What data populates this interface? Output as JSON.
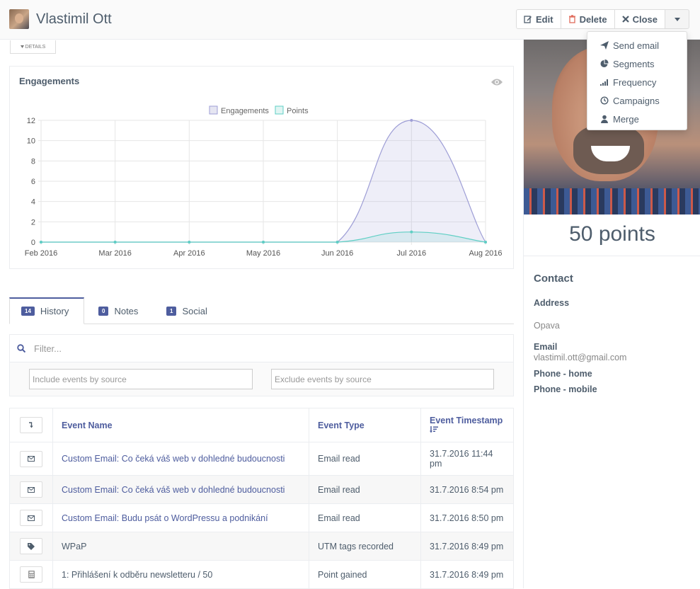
{
  "header": {
    "name": "Vlastimil Ott",
    "edit_label": "Edit",
    "delete_label": "Delete",
    "close_label": "Close"
  },
  "dropdown": {
    "items": [
      {
        "label": "Send email",
        "icon": "paper-plane-icon"
      },
      {
        "label": "Segments",
        "icon": "pie-chart-icon"
      },
      {
        "label": "Frequency",
        "icon": "signal-bars-icon"
      },
      {
        "label": "Campaigns",
        "icon": "clock-icon"
      },
      {
        "label": "Merge",
        "icon": "user-icon"
      }
    ]
  },
  "details_label": "DETAILS",
  "engagements": {
    "title": "Engagements",
    "chart_data": {
      "type": "area",
      "categories": [
        "Feb 2016",
        "Mar 2016",
        "Apr 2016",
        "May 2016",
        "Jun 2016",
        "Jul 2016",
        "Aug 2016"
      ],
      "series": [
        {
          "name": "Engagements",
          "values": [
            0,
            0,
            0,
            0,
            0,
            12,
            0
          ],
          "color": "#9e9ed6"
        },
        {
          "name": "Points",
          "values": [
            0,
            0,
            0,
            0,
            0,
            1,
            0
          ],
          "color": "#5fcfc4"
        }
      ],
      "ylim": [
        0,
        12
      ],
      "yticks": [
        0,
        2,
        4,
        6,
        8,
        10,
        12
      ],
      "legend": "top-center",
      "grid": true
    }
  },
  "tabs": [
    {
      "count": "14",
      "label": "History"
    },
    {
      "count": "0",
      "label": "Notes"
    },
    {
      "count": "1",
      "label": "Social"
    }
  ],
  "filter": {
    "placeholder": "Filter...",
    "include_placeholder": "Include events by source",
    "exclude_placeholder": "Exclude events by source"
  },
  "table": {
    "headers": {
      "name": "Event Name",
      "type": "Event Type",
      "timestamp": "Event Timestamp"
    },
    "rows": [
      {
        "icon": "envelope-icon",
        "name": "Custom Email: Co čeká váš web v dohledné budoucnosti",
        "type": "Email read",
        "timestamp": "31.7.2016 11:44 pm"
      },
      {
        "icon": "envelope-icon",
        "name": "Custom Email: Co čeká váš web v dohledné budoucnosti",
        "type": "Email read",
        "timestamp": "31.7.2016 8:54 pm"
      },
      {
        "icon": "envelope-icon",
        "name": "Custom Email: Budu psát o WordPressu a podnikání",
        "type": "Email read",
        "timestamp": "31.7.2016 8:50 pm"
      },
      {
        "icon": "tag-icon",
        "name": "WPaP",
        "type": "UTM tags recorded",
        "timestamp": "31.7.2016 8:49 pm"
      },
      {
        "icon": "calculator-icon",
        "name": "1: Přihlášení k odběru newsletteru / 50",
        "type": "Point gained",
        "timestamp": "31.7.2016 8:49 pm"
      }
    ]
  },
  "profile": {
    "points": "50 points",
    "contact_heading": "Contact",
    "address_label": "Address",
    "address_value": "Opava",
    "email_label": "Email",
    "email_value": "vlastimil.ott@gmail.com",
    "phone_home_label": "Phone - home",
    "phone_mobile_label": "Phone - mobile"
  }
}
